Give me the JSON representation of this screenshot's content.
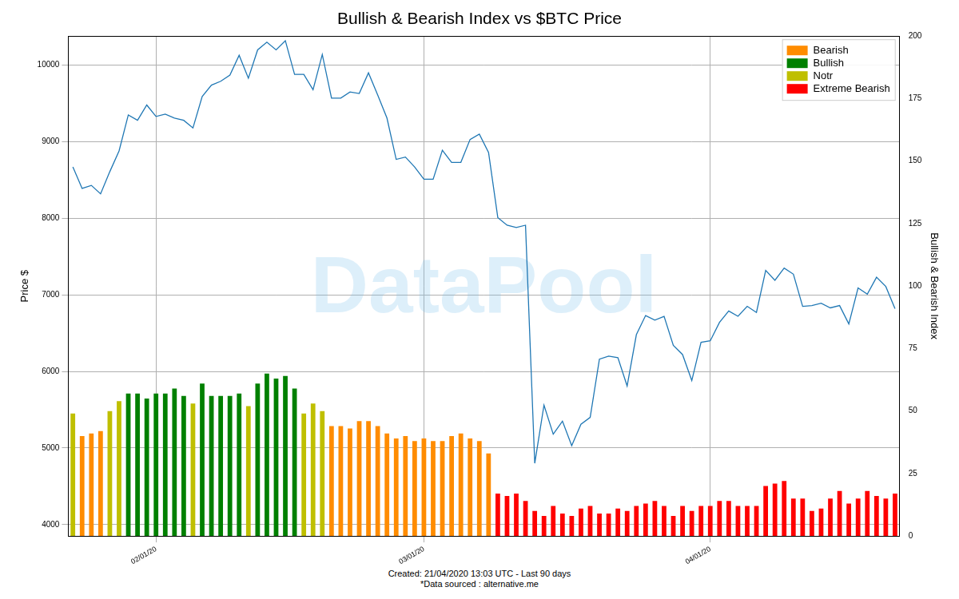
{
  "chart_data": {
    "type": "bar",
    "title": "Bullish & Bearish Index vs $BTC Price",
    "ylabel": "Price $",
    "y2label": "Bullish & Bearish Index",
    "watermark": "DataPool",
    "caption": [
      "Created: 21/04/2020 13:03 UTC - Last 90 days",
      "*Data sourced : alternative.me"
    ],
    "categories": [
      null,
      null,
      null,
      null,
      null,
      null,
      null,
      null,
      null,
      "02/01/20",
      null,
      null,
      null,
      null,
      null,
      null,
      null,
      null,
      null,
      null,
      null,
      null,
      null,
      null,
      null,
      null,
      null,
      null,
      null,
      null,
      null,
      null,
      null,
      null,
      null,
      null,
      null,
      null,
      "03/01/20",
      null,
      null,
      null,
      null,
      null,
      null,
      null,
      null,
      null,
      null,
      null,
      null,
      null,
      null,
      null,
      null,
      null,
      null,
      null,
      null,
      null,
      null,
      null,
      null,
      null,
      null,
      null,
      null,
      null,
      null,
      "04/01/20",
      null,
      null,
      null,
      null,
      null,
      null,
      null,
      null,
      null,
      null,
      null,
      null,
      null,
      null,
      null,
      null,
      null,
      null,
      null,
      null
    ],
    "series": [
      {
        "name": "Bearish",
        "type": "bar",
        "axis": "y2",
        "color": "#ff8c00",
        "values": [
          null,
          40,
          41,
          42,
          null,
          null,
          null,
          null,
          null,
          null,
          null,
          null,
          null,
          null,
          null,
          null,
          null,
          null,
          null,
          null,
          null,
          null,
          null,
          null,
          null,
          null,
          null,
          null,
          44,
          44,
          43,
          46,
          46,
          44,
          41,
          39,
          40,
          38,
          39,
          38,
          38,
          40,
          41,
          39,
          38,
          33,
          null,
          null,
          null,
          null,
          null,
          null,
          null,
          null,
          null,
          null,
          null,
          null,
          null,
          null,
          null,
          null,
          null,
          null,
          null,
          null,
          null,
          null,
          null,
          null,
          null,
          null,
          null,
          null,
          null,
          null,
          null,
          null,
          null,
          null,
          null,
          null,
          null,
          null,
          null,
          null,
          null,
          null,
          null,
          null
        ]
      },
      {
        "name": "Bullish",
        "type": "bar",
        "axis": "y2",
        "color": "#008000",
        "values": [
          null,
          null,
          null,
          null,
          null,
          null,
          57,
          57,
          55,
          57,
          57,
          59,
          56,
          null,
          61,
          56,
          56,
          56,
          57,
          null,
          61,
          65,
          63,
          64,
          59,
          null,
          null,
          null,
          null,
          null,
          null,
          null,
          null,
          null,
          null,
          null,
          null,
          null,
          null,
          null,
          null,
          null,
          null,
          null,
          null,
          null,
          null,
          null,
          null,
          null,
          null,
          null,
          null,
          null,
          null,
          null,
          null,
          null,
          null,
          null,
          null,
          null,
          null,
          null,
          null,
          null,
          null,
          null,
          null,
          null,
          null,
          null,
          null,
          null,
          null,
          null,
          null,
          null,
          null,
          null,
          null,
          null,
          null,
          null,
          null,
          null,
          null,
          null,
          null,
          null
        ]
      },
      {
        "name": "Notr",
        "type": "bar",
        "axis": "y2",
        "color": "#bfbf00",
        "values": [
          49,
          null,
          null,
          null,
          50,
          54,
          null,
          null,
          null,
          null,
          null,
          null,
          null,
          53,
          null,
          null,
          null,
          null,
          null,
          52,
          null,
          null,
          null,
          null,
          null,
          49,
          53,
          50,
          null,
          null,
          null,
          null,
          null,
          null,
          null,
          null,
          null,
          null,
          null,
          null,
          null,
          null,
          null,
          null,
          null,
          null,
          null,
          null,
          null,
          null,
          null,
          null,
          null,
          null,
          null,
          null,
          null,
          null,
          null,
          null,
          null,
          null,
          null,
          null,
          null,
          null,
          null,
          null,
          null,
          null,
          null,
          null,
          null,
          null,
          null,
          null,
          null,
          null,
          null,
          null,
          null,
          null,
          null,
          null,
          null,
          null,
          null,
          null,
          null,
          null
        ]
      },
      {
        "name": "Extreme Bearish",
        "type": "bar",
        "axis": "y2",
        "color": "#ff0000",
        "values": [
          null,
          null,
          null,
          null,
          null,
          null,
          null,
          null,
          null,
          null,
          null,
          null,
          null,
          null,
          null,
          null,
          null,
          null,
          null,
          null,
          null,
          null,
          null,
          null,
          null,
          null,
          null,
          null,
          null,
          null,
          null,
          null,
          null,
          null,
          null,
          null,
          null,
          null,
          null,
          null,
          null,
          null,
          null,
          null,
          null,
          null,
          17,
          16,
          17,
          14,
          10,
          8,
          12,
          9,
          8,
          11,
          12,
          9,
          9,
          11,
          10,
          12,
          13,
          14,
          12,
          8,
          12,
          10,
          12,
          12,
          14,
          14,
          12,
          12,
          12,
          20,
          21,
          22,
          15,
          15,
          10,
          11,
          15,
          18,
          13,
          15,
          18,
          16,
          15,
          17
        ]
      },
      {
        "type": "line",
        "axis": "y",
        "color": "#1f77b4",
        "values": [
          8670,
          8390,
          8430,
          8320,
          8610,
          8880,
          9350,
          9280,
          9480,
          9330,
          9360,
          9310,
          9280,
          9180,
          9590,
          9740,
          9790,
          9870,
          10130,
          9830,
          10200,
          10300,
          10200,
          10320,
          9880,
          9880,
          9680,
          10140,
          9570,
          9570,
          9650,
          9630,
          9900,
          9610,
          9310,
          8770,
          8800,
          8670,
          8510,
          8510,
          8890,
          8730,
          8730,
          9030,
          9100,
          8860,
          8010,
          7910,
          7880,
          7910,
          4800,
          5560,
          5180,
          5350,
          5030,
          5310,
          5400,
          6160,
          6200,
          6180,
          5810,
          6480,
          6730,
          6670,
          6720,
          6340,
          6220,
          5880,
          6380,
          6400,
          6640,
          6790,
          6720,
          6850,
          6770,
          7320,
          7190,
          7350,
          7270,
          6850,
          6860,
          6890,
          6830,
          6860,
          6620,
          7090,
          7010,
          7230,
          7110,
          6820
        ]
      }
    ],
    "ylim": [
      3850,
      10380
    ],
    "yticks": [
      4000,
      5000,
      6000,
      7000,
      8000,
      9000,
      10000
    ],
    "y2lim": [
      0,
      200
    ],
    "y2ticks": [
      0,
      25,
      50,
      75,
      100,
      125,
      150,
      175,
      200
    ],
    "grid": true,
    "legend": "upper right"
  }
}
